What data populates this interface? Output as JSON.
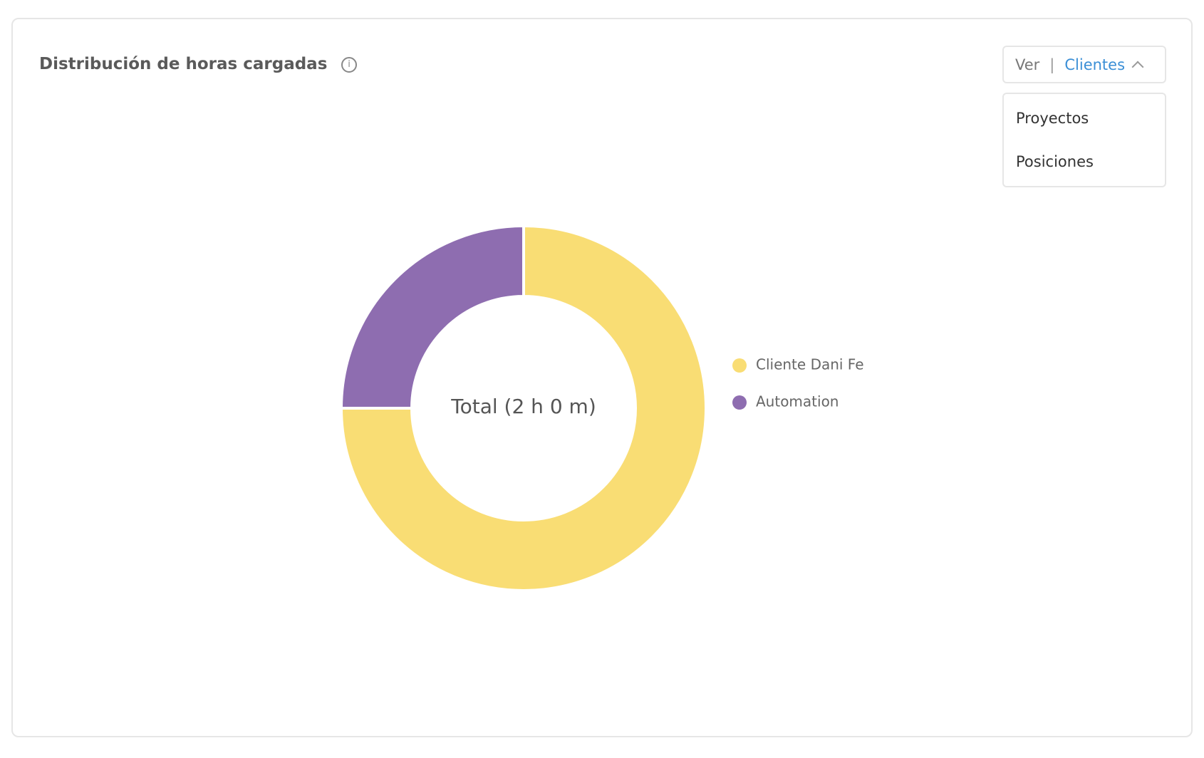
{
  "card": {
    "title": "Distribución de horas cargadas",
    "info_icon": "i",
    "selector": {
      "prefix": "Ver",
      "separator": "|",
      "value": "Clientes"
    },
    "menu": [
      "Proyectos",
      "Posiciones"
    ]
  },
  "chart_data": {
    "type": "donut",
    "center_label": "Total (2 h 0 m)",
    "categories": [
      "Cliente Dani Fe",
      "Automation"
    ],
    "values": [
      75,
      25
    ],
    "colors": [
      "#f9dd74",
      "#8e6db0"
    ],
    "legend": "right"
  }
}
